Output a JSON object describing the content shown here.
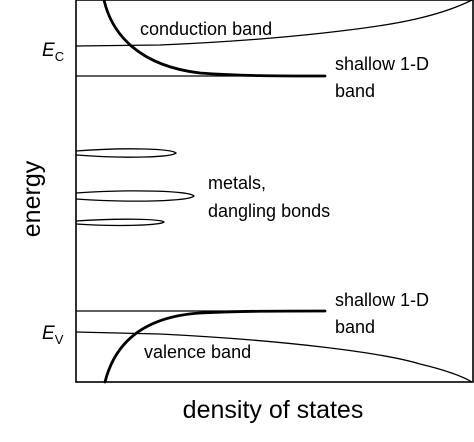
{
  "diagram": {
    "axes": {
      "x_label": "density of states",
      "y_label": "energy"
    },
    "levels": {
      "ec": {
        "main": "E",
        "sub": "C"
      },
      "ev": {
        "main": "E",
        "sub": "V"
      }
    },
    "bands": {
      "conduction": "conduction band",
      "valence": "valence band",
      "shallow_upper": [
        "shallow 1-D",
        "band"
      ],
      "shallow_lower": [
        "shallow 1-D",
        "band"
      ],
      "mid_gap": [
        "metals,",
        "dangling bonds"
      ]
    }
  }
}
